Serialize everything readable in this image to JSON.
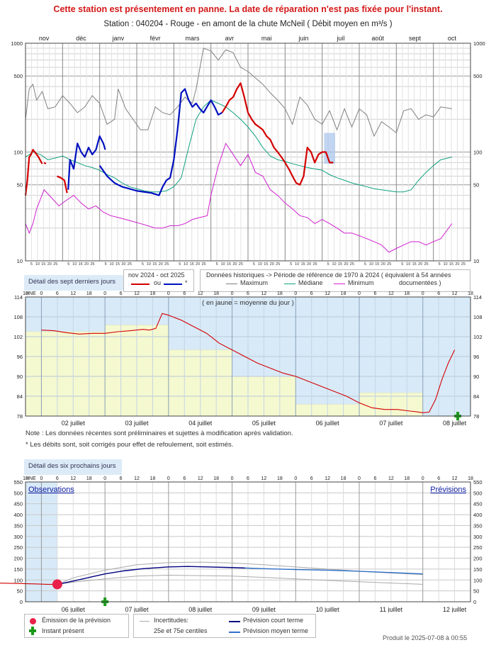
{
  "header": {
    "alert": "Cette station est présentement en panne. La date de réparation n'est pas fixée pour l'instant.",
    "station_line": "Station : 040204     -   Rouge - en amont de la chute McNeil   ( Débit moyen en m³/s )"
  },
  "colors": {
    "current_year": "#d40000",
    "other_flag": "#0010c0",
    "maximum": "#808080",
    "median": "#10a080",
    "minimum": "#d020d0",
    "obs_bg": "#d8eaf8",
    "daily_mean_fill": "#f5f9d0",
    "emission_dot": "#e8204a",
    "now_marker": "#1a9a1a",
    "forecast_short": "#000080",
    "forecast_medium": "#3070c8"
  },
  "chart_data": [
    {
      "id": "annual",
      "type": "line",
      "title": "",
      "yscale": "log",
      "ylim": [
        10,
        1000
      ],
      "yticks": [
        10,
        50,
        100,
        500,
        1000
      ],
      "month_labels": [
        "nov",
        "déc",
        "janv",
        "févr",
        "mars",
        "avr",
        "mai",
        "juin",
        "juil",
        "août",
        "sept",
        "oct"
      ],
      "day_tick_labels": [
        "5",
        "10",
        "15",
        "20",
        "25"
      ],
      "x_unit": "month index (0 = début nov 2024)",
      "series": [
        {
          "name": "Maximum",
          "x": [
            0,
            0.1,
            0.2,
            0.3,
            0.45,
            0.6,
            0.8,
            1.0,
            1.2,
            1.4,
            1.6,
            1.8,
            2.0,
            2.2,
            2.4,
            2.5,
            2.7,
            2.9,
            3.1,
            3.3,
            3.5,
            3.7,
            3.9,
            4.1,
            4.3,
            4.5,
            4.6,
            4.8,
            5.0,
            5.2,
            5.4,
            5.6,
            5.8,
            6.0,
            6.2,
            6.4,
            6.6,
            6.8,
            7.0,
            7.2,
            7.4,
            7.6,
            7.8,
            8.0,
            8.2,
            8.4,
            8.6,
            8.8,
            9.0,
            9.2,
            9.4,
            9.6,
            9.8,
            10.0,
            10.2,
            10.4,
            10.6,
            10.8,
            11.0,
            11.2,
            11.5
          ],
          "y": [
            200,
            380,
            420,
            300,
            360,
            250,
            260,
            330,
            280,
            230,
            260,
            330,
            280,
            180,
            200,
            380,
            250,
            200,
            160,
            160,
            260,
            230,
            220,
            260,
            320,
            280,
            380,
            900,
            850,
            700,
            870,
            820,
            600,
            550,
            480,
            420,
            350,
            300,
            250,
            180,
            320,
            270,
            200,
            180,
            240,
            160,
            250,
            170,
            250,
            220,
            140,
            190,
            170,
            150,
            240,
            250,
            200,
            220,
            210,
            260,
            250
          ]
        },
        {
          "name": "Médiane",
          "x": [
            0,
            0.2,
            0.4,
            0.6,
            0.8,
            1.0,
            1.2,
            1.4,
            1.6,
            1.8,
            2.0,
            2.2,
            2.4,
            2.6,
            2.8,
            3.0,
            3.2,
            3.4,
            3.6,
            3.8,
            4.0,
            4.2,
            4.4,
            4.6,
            4.8,
            5.0,
            5.2,
            5.4,
            5.6,
            5.8,
            6.0,
            6.2,
            6.4,
            6.6,
            6.8,
            7.0,
            7.2,
            7.4,
            7.6,
            7.8,
            8.0,
            8.2,
            8.4,
            8.6,
            8.8,
            9.0,
            9.2,
            9.4,
            9.6,
            9.8,
            10.0,
            10.2,
            10.4,
            10.6,
            10.8,
            11.0,
            11.2,
            11.5
          ],
          "y": [
            90,
            100,
            95,
            85,
            88,
            92,
            85,
            80,
            75,
            72,
            68,
            62,
            58,
            52,
            48,
            46,
            44,
            43,
            43,
            44,
            48,
            58,
            110,
            200,
            260,
            300,
            280,
            260,
            230,
            200,
            170,
            140,
            110,
            92,
            85,
            82,
            78,
            75,
            72,
            70,
            68,
            62,
            58,
            55,
            52,
            50,
            48,
            46,
            45,
            44,
            43,
            43,
            45,
            55,
            65,
            75,
            85,
            90
          ]
        },
        {
          "name": "Minimum",
          "x": [
            0,
            0.1,
            0.2,
            0.3,
            0.5,
            0.7,
            0.9,
            1.1,
            1.3,
            1.5,
            1.7,
            1.9,
            2.1,
            2.3,
            2.5,
            2.7,
            2.9,
            3.1,
            3.3,
            3.5,
            3.7,
            3.9,
            4.1,
            4.3,
            4.5,
            4.7,
            4.9,
            5.0,
            5.2,
            5.4,
            5.6,
            5.8,
            6.0,
            6.2,
            6.4,
            6.6,
            6.8,
            7.0,
            7.2,
            7.4,
            7.6,
            7.8,
            8.0,
            8.2,
            8.4,
            8.6,
            8.8,
            9.0,
            9.2,
            9.4,
            9.6,
            9.8,
            10.0,
            10.2,
            10.4,
            10.6,
            10.8,
            11.0,
            11.2,
            11.5
          ],
          "y": [
            22,
            18,
            22,
            30,
            45,
            38,
            32,
            36,
            40,
            34,
            30,
            32,
            28,
            26,
            25,
            24,
            23,
            22,
            21,
            20,
            20,
            21,
            21,
            22,
            24,
            25,
            26,
            40,
            75,
            120,
            95,
            75,
            95,
            65,
            60,
            45,
            40,
            34,
            30,
            26,
            25,
            22,
            24,
            22,
            20,
            18,
            18,
            17,
            16,
            15,
            14,
            12,
            13,
            14,
            15,
            15,
            14,
            15,
            16,
            22
          ]
        },
        {
          "name": "nov 2024 - oct 2025",
          "segments": [
            {
              "x": [
                0,
                0.05,
                0.1,
                0.15,
                0.2,
                0.25,
                0.3,
                0.35,
                0.45
              ],
              "y": [
                40,
                55,
                90,
                95,
                105,
                100,
                95,
                90,
                78
              ]
            },
            {
              "x": [
                0.5,
                0.55
              ],
              "y": [
                80,
                78
              ]
            },
            {
              "x": [
                0.85,
                0.95,
                1.05,
                1.12
              ],
              "y": [
                60,
                58,
                55,
                42
              ]
            },
            {
              "x": [
                5.3,
                5.4,
                5.5,
                5.6,
                5.7,
                5.8,
                5.9,
                6.0,
                6.1,
                6.2,
                6.3,
                6.4,
                6.5,
                6.6,
                6.7,
                6.8,
                6.9,
                7.0,
                7.1,
                7.2,
                7.3,
                7.4,
                7.5,
                7.6,
                7.7,
                7.8,
                7.9,
                8.0,
                8.1,
                8.2,
                8.3
              ],
              "y": [
                230,
                260,
                300,
                320,
                380,
                430,
                320,
                230,
                200,
                180,
                170,
                160,
                140,
                130,
                110,
                100,
                90,
                80,
                70,
                60,
                52,
                50,
                60,
                110,
                100,
                80,
                95,
                100,
                100,
                80,
                80
              ]
            }
          ]
        },
        {
          "name": "*",
          "segments": [
            {
              "x": [
                1.15,
                1.2,
                1.3,
                1.4,
                1.5,
                1.6,
                1.7,
                1.8,
                1.9,
                2.0,
                2.1,
                2.15
              ],
              "y": [
                45,
                85,
                70,
                120,
                100,
                90,
                110,
                95,
                105,
                140,
                120,
                105
              ]
            },
            {
              "x": [
                2.0,
                2.2,
                2.4,
                2.6,
                2.8,
                3.0,
                3.2,
                3.4,
                3.6,
                3.7,
                3.8,
                3.9,
                4.0,
                4.1,
                4.2,
                4.3,
                4.4,
                4.5,
                4.6,
                4.7,
                4.8,
                5.0,
                5.1,
                5.2,
                5.3
              ],
              "y": [
                75,
                60,
                52,
                48,
                46,
                44,
                43,
                42,
                40,
                48,
                55,
                58,
                85,
                160,
                350,
                380,
                300,
                260,
                280,
                250,
                230,
                300,
                260,
                220,
                230
              ]
            }
          ]
        }
      ],
      "legend": {
        "year_label": "nov 2024 - oct 2025",
        "or_label": "ou",
        "star_label": "*",
        "hist_title": "Données historiques -> Période de référence  de 1970 à 2024   ( équivalent à 54 années",
        "hist_end": "documentées )",
        "max_label": "Maximum",
        "median_label": "Médiane",
        "min_label": "Minimum"
      }
    },
    {
      "id": "last7",
      "type": "line",
      "title": "( en jaune = moyenne du jour )",
      "button": "Détail des sept derniers jours",
      "hne_label": "HNE",
      "ylim": [
        78,
        114
      ],
      "yticks": [
        78,
        84,
        90,
        96,
        102,
        108,
        114
      ],
      "hour_labels": [
        "6",
        "12",
        "18",
        "0"
      ],
      "day_labels": [
        "02 juillet",
        "03 juillet",
        "04 juillet",
        "05 juillet",
        "06 juillet",
        "07 juillet",
        "08 juillet"
      ],
      "x_unit": "jours depuis 02 juillet 00h",
      "daily_means": [
        {
          "day": "01 juillet",
          "value": 103.5
        },
        {
          "day": "02 juillet",
          "value": 103.5
        },
        {
          "day": "03 juillet",
          "value": 105.5
        },
        {
          "day": "04 juillet",
          "value": 98.0
        },
        {
          "day": "05 juillet",
          "value": 90.0
        },
        {
          "day": "06 juillet",
          "value": 81.5
        },
        {
          "day": "07 juillet",
          "value": 85.0
        }
      ],
      "series": [
        {
          "name": "débit",
          "x": [
            0,
            0.2,
            0.4,
            0.6,
            0.8,
            1.0,
            1.2,
            1.4,
            1.6,
            1.7,
            1.8,
            1.9,
            2.0,
            2.2,
            2.4,
            2.6,
            2.8,
            3.0,
            3.2,
            3.4,
            3.6,
            3.8,
            4.0,
            4.2,
            4.4,
            4.6,
            4.8,
            5.0,
            5.2,
            5.4,
            5.6,
            5.8,
            5.9,
            6.0,
            6.1,
            6.2,
            6.3,
            6.4,
            6.5
          ],
          "y": [
            104,
            103.8,
            103.2,
            102.8,
            103,
            103,
            103.5,
            103.8,
            104.2,
            104,
            104.5,
            109,
            108.5,
            107,
            105,
            103,
            100,
            98,
            96,
            94,
            92.5,
            91,
            90,
            88.5,
            87,
            85.5,
            84,
            82,
            80.5,
            80,
            80,
            79.5,
            79.3,
            79,
            79.2,
            83,
            89,
            94,
            98
          ]
        },
        {
          "name": "moyenne du jour",
          "x": [],
          "y": []
        }
      ],
      "now_x": 6.55,
      "note_1": "Note : Les données récentes sont préliminaires et sujettes à modification après validation.",
      "note_2": "* Les débits sont, soit corrigés pour effet de refoulement, soit estimés."
    },
    {
      "id": "forecast",
      "type": "line",
      "title": "",
      "button": "Détail des six prochains jours",
      "hne_label": "HNE",
      "observations_label": "Observations",
      "previsions_label": "Prévisions",
      "ylim": [
        0,
        550
      ],
      "yticks": [
        0,
        50,
        100,
        150,
        200,
        250,
        300,
        350,
        400,
        450,
        500,
        550
      ],
      "hour_labels": [
        "6",
        "12",
        "18",
        "0"
      ],
      "day_labels": [
        "06 juillet",
        "07 juillet",
        "08 juillet",
        "09 juillet",
        "10 juillet",
        "11 juillet",
        "12 juillet"
      ],
      "x_unit": "jours depuis 06 juillet 00h",
      "emission_x": 1.25,
      "emission_y": 80,
      "now_x": 2.0,
      "series": [
        {
          "name": "Observations",
          "x": [
            0,
            0.3,
            0.6,
            0.9,
            1.1,
            1.25
          ],
          "y": [
            88,
            86,
            84,
            82,
            80,
            80
          ]
        },
        {
          "name": "25e centile",
          "x": [
            1.25,
            1.5,
            2.0,
            2.5,
            3.0,
            3.5,
            4.0,
            4.5,
            5.0,
            5.5,
            6.0,
            6.5,
            7.0
          ],
          "y": [
            80,
            90,
            105,
            118,
            122,
            120,
            118,
            112,
            105,
            98,
            92,
            86,
            80
          ]
        },
        {
          "name": "75e centile",
          "x": [
            1.25,
            1.5,
            2.0,
            2.5,
            3.0,
            3.5,
            4.0,
            4.5,
            5.0,
            5.5,
            6.0,
            6.5,
            7.0
          ],
          "y": [
            80,
            110,
            145,
            170,
            180,
            182,
            178,
            170,
            160,
            150,
            140,
            132,
            125
          ]
        },
        {
          "name": "Prévision court terme",
          "x": [
            1.25,
            1.5,
            1.8,
            2.0,
            2.3,
            2.6,
            3.0,
            3.3,
            3.6,
            4.0,
            4.2
          ],
          "y": [
            80,
            95,
            115,
            128,
            142,
            152,
            160,
            162,
            160,
            157,
            155
          ]
        },
        {
          "name": "Prévision moyen terme",
          "x": [
            4.2,
            4.5,
            5.0,
            5.5,
            6.0,
            6.5,
            7.0
          ],
          "y": [
            155,
            152,
            148,
            145,
            140,
            134,
            128
          ]
        }
      ],
      "legend": {
        "emission": "Émission de la prévision",
        "now": "Instant présent",
        "uncertainties": "Incertitudes:",
        "centiles": "25e et 75e centiles",
        "short": "Prévision court terme",
        "medium": "Prévision moyen terme"
      }
    }
  ],
  "footer": {
    "produced": "Produit le 2025-07-08 à 00:55"
  }
}
